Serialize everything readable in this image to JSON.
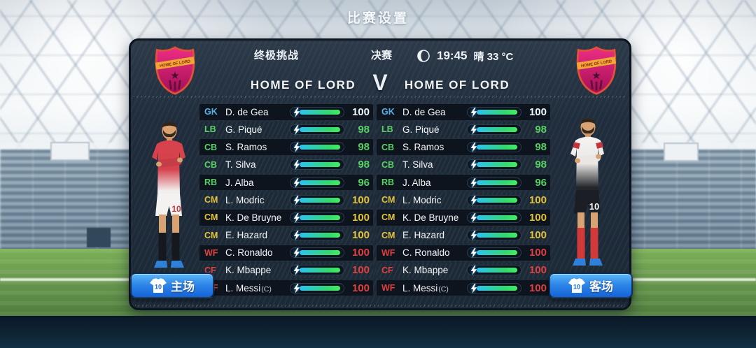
{
  "screen": {
    "title": "比赛设置"
  },
  "panel": {
    "header": {
      "mode": "终极挑战",
      "stage": "决赛",
      "moon_icon": "crescent-moon",
      "time": "19:45",
      "weather": "晴 33 °C"
    },
    "matchup": {
      "home_name": "HOME OF LORD",
      "versus": "V",
      "away_name": "HOME OF LORD",
      "badge_text": "HOME OF LORD"
    },
    "colors": {
      "position_gk": "#57b1e8",
      "position_def": "#58d065",
      "position_mid": "#e3c23a",
      "position_fwd": "#e04040",
      "rating_gk": "#eef6ff",
      "energy_start": "#2cc3f2",
      "energy_end": "#41ef62",
      "button_blue": "#2f87e9"
    },
    "teams": [
      {
        "side": "home",
        "button_label": "主场",
        "button_jersey_number": "10",
        "players": [
          {
            "pos": "GK",
            "name": "D. de Gea",
            "suffix": "",
            "rating": 100,
            "energy_pct": 100,
            "pos_color": "#57b1e8",
            "rating_color": "#eef6ff"
          },
          {
            "pos": "LB",
            "name": "G. Piqué",
            "suffix": "",
            "rating": 98,
            "energy_pct": 100,
            "pos_color": "#58d065",
            "rating_color": "#58d065"
          },
          {
            "pos": "CB",
            "name": "S. Ramos",
            "suffix": "",
            "rating": 98,
            "energy_pct": 100,
            "pos_color": "#58d065",
            "rating_color": "#58d065"
          },
          {
            "pos": "CB",
            "name": "T. Silva",
            "suffix": "",
            "rating": 98,
            "energy_pct": 100,
            "pos_color": "#58d065",
            "rating_color": "#58d065"
          },
          {
            "pos": "RB",
            "name": "J. Alba",
            "suffix": "",
            "rating": 96,
            "energy_pct": 100,
            "pos_color": "#58d065",
            "rating_color": "#58d065"
          },
          {
            "pos": "CM",
            "name": "L. Modric",
            "suffix": "",
            "rating": 100,
            "energy_pct": 100,
            "pos_color": "#e3c23a",
            "rating_color": "#e3c23a"
          },
          {
            "pos": "CM",
            "name": "K. De Bruyne",
            "suffix": "",
            "rating": 100,
            "energy_pct": 100,
            "pos_color": "#e3c23a",
            "rating_color": "#e3c23a"
          },
          {
            "pos": "CM",
            "name": "E. Hazard",
            "suffix": "",
            "rating": 100,
            "energy_pct": 100,
            "pos_color": "#e3c23a",
            "rating_color": "#e3c23a"
          },
          {
            "pos": "WF",
            "name": "C. Ronaldo",
            "suffix": "",
            "rating": 100,
            "energy_pct": 100,
            "pos_color": "#e04040",
            "rating_color": "#e04040"
          },
          {
            "pos": "CF",
            "name": "K. Mbappe",
            "suffix": "",
            "rating": 100,
            "energy_pct": 100,
            "pos_color": "#e04040",
            "rating_color": "#e04040"
          },
          {
            "pos": "WF",
            "name": "L. Messi",
            "suffix": "(C)",
            "rating": 100,
            "energy_pct": 100,
            "pos_color": "#e04040",
            "rating_color": "#e04040"
          }
        ]
      },
      {
        "side": "away",
        "button_label": "客场",
        "button_jersey_number": "10",
        "players": [
          {
            "pos": "GK",
            "name": "D. de Gea",
            "suffix": "",
            "rating": 100,
            "energy_pct": 100,
            "pos_color": "#57b1e8",
            "rating_color": "#eef6ff"
          },
          {
            "pos": "LB",
            "name": "G. Piqué",
            "suffix": "",
            "rating": 98,
            "energy_pct": 100,
            "pos_color": "#58d065",
            "rating_color": "#58d065"
          },
          {
            "pos": "CB",
            "name": "S. Ramos",
            "suffix": "",
            "rating": 98,
            "energy_pct": 100,
            "pos_color": "#58d065",
            "rating_color": "#58d065"
          },
          {
            "pos": "CB",
            "name": "T. Silva",
            "suffix": "",
            "rating": 98,
            "energy_pct": 100,
            "pos_color": "#58d065",
            "rating_color": "#58d065"
          },
          {
            "pos": "RB",
            "name": "J. Alba",
            "suffix": "",
            "rating": 96,
            "energy_pct": 100,
            "pos_color": "#58d065",
            "rating_color": "#58d065"
          },
          {
            "pos": "CM",
            "name": "L. Modric",
            "suffix": "",
            "rating": 100,
            "energy_pct": 100,
            "pos_color": "#e3c23a",
            "rating_color": "#e3c23a"
          },
          {
            "pos": "CM",
            "name": "K. De Bruyne",
            "suffix": "",
            "rating": 100,
            "energy_pct": 100,
            "pos_color": "#e3c23a",
            "rating_color": "#e3c23a"
          },
          {
            "pos": "CM",
            "name": "E. Hazard",
            "suffix": "",
            "rating": 100,
            "energy_pct": 100,
            "pos_color": "#e3c23a",
            "rating_color": "#e3c23a"
          },
          {
            "pos": "WF",
            "name": "C. Ronaldo",
            "suffix": "",
            "rating": 100,
            "energy_pct": 100,
            "pos_color": "#e04040",
            "rating_color": "#e04040"
          },
          {
            "pos": "CF",
            "name": "K. Mbappe",
            "suffix": "",
            "rating": 100,
            "energy_pct": 100,
            "pos_color": "#e04040",
            "rating_color": "#e04040"
          },
          {
            "pos": "WF",
            "name": "L. Messi",
            "suffix": "(C)",
            "rating": 100,
            "energy_pct": 100,
            "pos_color": "#e04040",
            "rating_color": "#e04040"
          }
        ]
      }
    ]
  }
}
